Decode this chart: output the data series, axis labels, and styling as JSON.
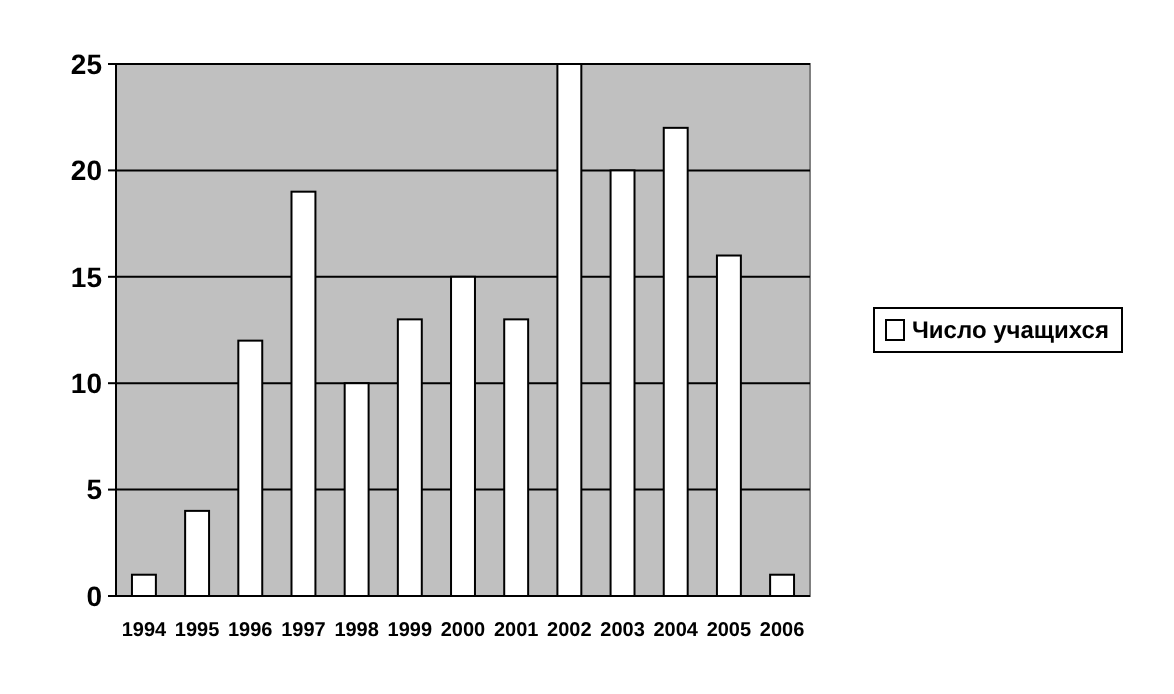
{
  "chart_data": {
    "type": "bar",
    "categories": [
      "1994",
      "1995",
      "1996",
      "1997",
      "1998",
      "1999",
      "2000",
      "2001",
      "2002",
      "2003",
      "2004",
      "2005",
      "2006"
    ],
    "series": [
      {
        "name": "Число учащихся",
        "color": "#ffffff",
        "values": [
          1,
          4,
          12,
          19,
          10,
          13,
          15,
          13,
          25,
          20,
          22,
          16,
          1
        ]
      }
    ],
    "ylim": [
      0,
      25
    ],
    "yticks": [
      0,
      5,
      10,
      15,
      20,
      25
    ],
    "grid": "y",
    "legend": "right"
  }
}
